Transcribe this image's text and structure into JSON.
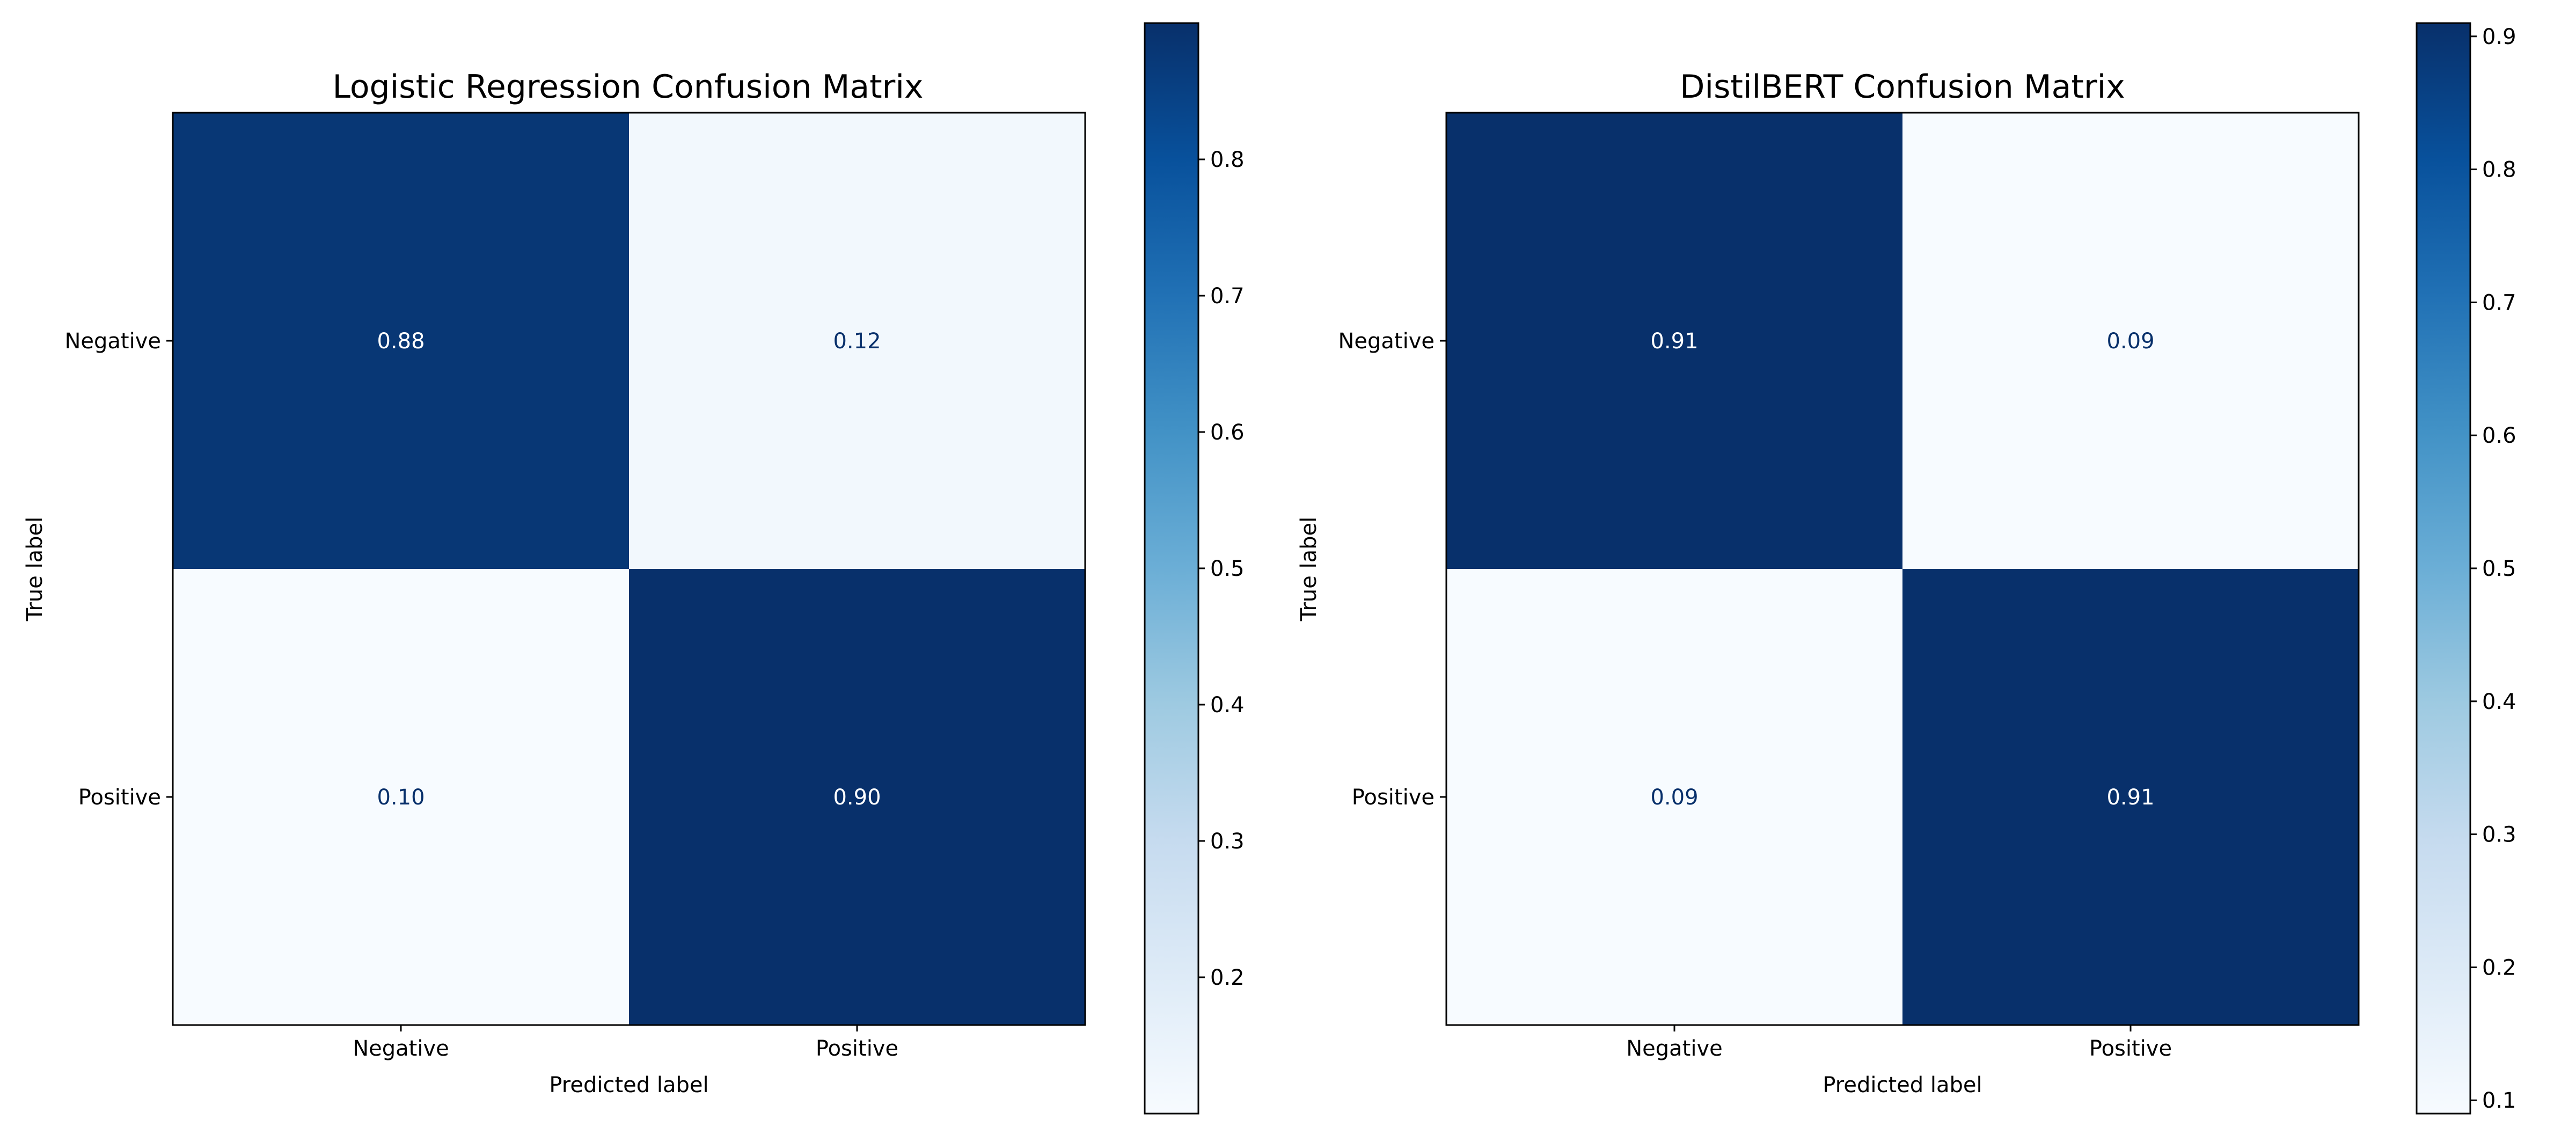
{
  "chart_data": [
    {
      "type": "heatmap",
      "title": "Logistic Regression Confusion Matrix",
      "xlabel": "Predicted label",
      "ylabel": "True label",
      "x_categories": [
        "Negative",
        "Positive"
      ],
      "y_categories": [
        "Negative",
        "Positive"
      ],
      "values": [
        [
          0.88,
          0.12
        ],
        [
          0.1,
          0.9
        ]
      ],
      "cell_labels": [
        [
          "0.88",
          "0.12"
        ],
        [
          "0.10",
          "0.90"
        ]
      ],
      "colormap": "Blues",
      "colorbar": {
        "range": [
          0.1,
          0.9
        ],
        "ticks": [
          0.2,
          0.3,
          0.4,
          0.5,
          0.6,
          0.7,
          0.8
        ],
        "tick_labels": [
          "0.2",
          "0.3",
          "0.4",
          "0.5",
          "0.6",
          "0.7",
          "0.8"
        ]
      }
    },
    {
      "type": "heatmap",
      "title": "DistilBERT Confusion Matrix",
      "xlabel": "Predicted label",
      "ylabel": "True label",
      "x_categories": [
        "Negative",
        "Positive"
      ],
      "y_categories": [
        "Negative",
        "Positive"
      ],
      "values": [
        [
          0.91,
          0.09
        ],
        [
          0.09,
          0.91
        ]
      ],
      "cell_labels": [
        [
          "0.91",
          "0.09"
        ],
        [
          "0.09",
          "0.91"
        ]
      ],
      "colormap": "Blues",
      "colorbar": {
        "range": [
          0.09,
          0.91
        ],
        "ticks": [
          0.1,
          0.2,
          0.3,
          0.4,
          0.5,
          0.6,
          0.7,
          0.8,
          0.9
        ],
        "tick_labels": [
          "0.1",
          "0.2",
          "0.3",
          "0.4",
          "0.5",
          "0.6",
          "0.7",
          "0.8",
          "0.9"
        ]
      }
    }
  ],
  "colors": {
    "cmap_low": "#f7fbff",
    "cmap_high": "#08306b",
    "text_on_dark": "#ffffff",
    "text_on_light": "#08306b",
    "axis": "#000000"
  }
}
